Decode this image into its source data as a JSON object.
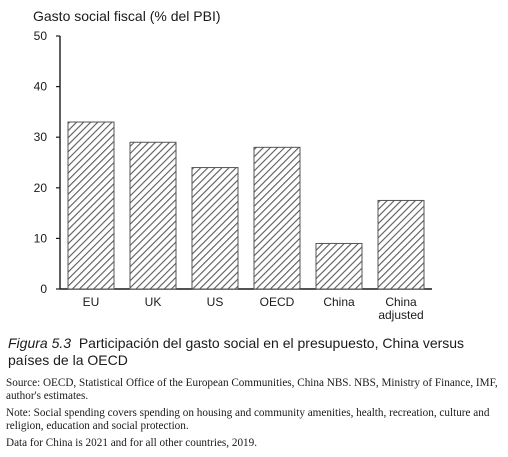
{
  "chart_data": {
    "type": "bar",
    "title": "Gasto social fiscal (% del PBI)",
    "xlabel": "",
    "ylabel": "",
    "ylim": [
      0,
      50
    ],
    "yticks": [
      0,
      10,
      20,
      30,
      40,
      50
    ],
    "grid": false,
    "categories": [
      "EU",
      "UK",
      "US",
      "OECD",
      "China",
      "China adjusted"
    ],
    "category_lines": [
      [
        "EU"
      ],
      [
        "UK"
      ],
      [
        "US"
      ],
      [
        "OECD"
      ],
      [
        "China"
      ],
      [
        "China",
        "adjusted"
      ]
    ],
    "values": [
      33,
      29,
      24,
      28,
      9,
      17.5
    ],
    "bar_style": "diagonal-hatch",
    "bar_color": "#555555"
  },
  "caption": {
    "label": "Figura 5.3",
    "text": "Participación del gasto social en el presupuesto, China versus países de la OECD"
  },
  "notes": {
    "source": "Source: OECD, Statistical Office of the European Communities, China NBS. NBS, Ministry of Finance, IMF, author's estimates.",
    "note": "Note: Social spending covers spending on housing and community amenities, health, recreation, culture and religion, education and social protection.",
    "data_years": "Data for China is 2021 and for all other countries, 2019."
  }
}
